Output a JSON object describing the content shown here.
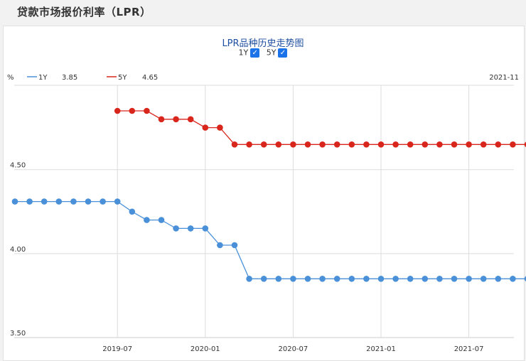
{
  "page": {
    "title": "贷款市场报价利率（LPR）"
  },
  "toggles": [
    {
      "label": "1Y",
      "checked": true
    },
    {
      "label": "5Y",
      "checked": true
    }
  ],
  "legend": {
    "unit": "%",
    "latest_date": "2021-11",
    "items": [
      {
        "name": "1Y",
        "value": "3.85",
        "color": "#4a90d9"
      },
      {
        "name": "5Y",
        "value": "4.65",
        "color": "#d9261c"
      }
    ]
  },
  "chart_data": {
    "type": "line",
    "title": "LPR品种历史走势图",
    "xlabel": "",
    "ylabel": "%",
    "x": [
      "2018-12",
      "2019-01",
      "2019-02",
      "2019-03",
      "2019-04",
      "2019-05",
      "2019-06",
      "2019-07",
      "2019-08",
      "2019-09",
      "2019-10",
      "2019-11",
      "2019-12",
      "2020-01",
      "2020-02",
      "2020-03",
      "2020-04",
      "2020-05",
      "2020-06",
      "2020-07",
      "2020-08",
      "2020-09",
      "2020-10",
      "2020-11",
      "2020-12",
      "2021-01",
      "2021-02",
      "2021-03",
      "2021-04",
      "2021-05",
      "2021-06",
      "2021-07",
      "2021-08",
      "2021-09",
      "2021-10",
      "2021-11"
    ],
    "x_ticks": [
      "2019-07",
      "2020-01",
      "2020-07",
      "2021-01",
      "2021-07"
    ],
    "y_ticks": [
      "4.50",
      "4.00",
      "3.50"
    ],
    "ylim": [
      3.5,
      5.0
    ],
    "grid": true,
    "series": [
      {
        "name": "1Y",
        "color": "#4a90d9",
        "values": [
          4.31,
          4.31,
          4.31,
          4.31,
          4.31,
          4.31,
          4.31,
          4.31,
          4.25,
          4.2,
          4.2,
          4.15,
          4.15,
          4.15,
          4.05,
          4.05,
          3.85,
          3.85,
          3.85,
          3.85,
          3.85,
          3.85,
          3.85,
          3.85,
          3.85,
          3.85,
          3.85,
          3.85,
          3.85,
          3.85,
          3.85,
          3.85,
          3.85,
          3.85,
          3.85,
          3.85
        ]
      },
      {
        "name": "5Y",
        "color": "#d9261c",
        "values": [
          null,
          null,
          null,
          null,
          null,
          null,
          null,
          4.85,
          4.85,
          4.85,
          4.8,
          4.8,
          4.8,
          4.75,
          4.75,
          4.65,
          4.65,
          4.65,
          4.65,
          4.65,
          4.65,
          4.65,
          4.65,
          4.65,
          4.65,
          4.65,
          4.65,
          4.65,
          4.65,
          4.65,
          4.65,
          4.65,
          4.65,
          4.65,
          4.65,
          4.65
        ]
      }
    ]
  }
}
